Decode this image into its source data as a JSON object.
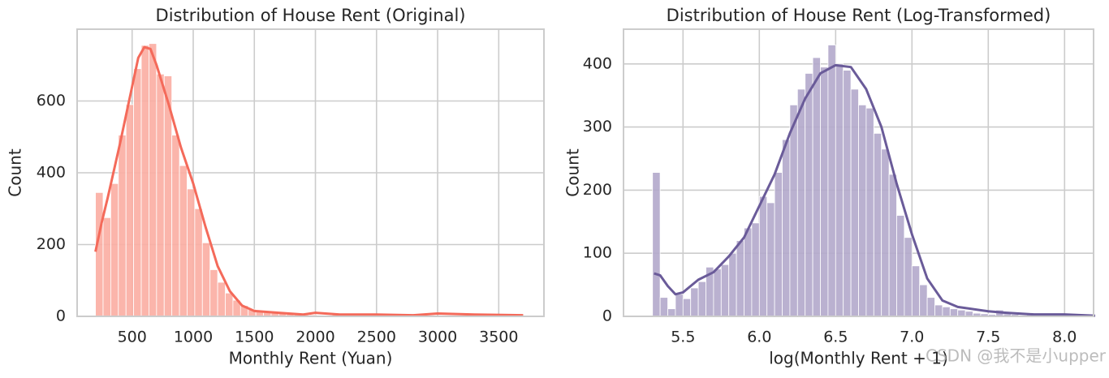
{
  "chart_data": [
    {
      "type": "histogram",
      "title": "Distribution of House Rent (Original)",
      "xlabel": "Monthly Rent (Yuan)",
      "ylabel": "Count",
      "xlim": [
        50,
        3870
      ],
      "ylim": [
        0,
        800
      ],
      "xticks": [
        500,
        1000,
        1500,
        2000,
        2500,
        3000,
        3500
      ],
      "yticks": [
        0,
        200,
        400,
        600
      ],
      "grid": true,
      "color": "#fbada2",
      "bins": [
        200,
        262.5,
        325,
        387.5,
        450,
        512.5,
        575,
        637.5,
        700,
        762.5,
        825,
        887.5,
        950,
        1012.5,
        1075,
        1137.5,
        1200,
        1262.5,
        1325,
        1387.5,
        1450,
        1512.5,
        1575,
        1637.5,
        1700,
        1762.5,
        1825,
        1887.5,
        1950,
        2012.5,
        2075,
        2137.5,
        2200,
        2262.5,
        2325,
        2387.5,
        2450,
        2512.5,
        2575,
        2637.5,
        2700,
        2762.5,
        2825,
        2887.5,
        2950,
        3012.5,
        3075,
        3137.5,
        3200,
        3262.5,
        3325,
        3387.5,
        3450,
        3512.5,
        3575,
        3637.5,
        3700
      ],
      "values": [
        345,
        275,
        370,
        505,
        590,
        690,
        755,
        760,
        675,
        670,
        505,
        420,
        355,
        300,
        205,
        130,
        95,
        65,
        45,
        30,
        20,
        14,
        12,
        10,
        8,
        6,
        5,
        4,
        4,
        3,
        3,
        6,
        5,
        3,
        2,
        2,
        3,
        2,
        2,
        1,
        1,
        2,
        1,
        1,
        1,
        1,
        2,
        1,
        1,
        1,
        1,
        1,
        1,
        1,
        1,
        1
      ],
      "line": {
        "color": "#f46a5a",
        "x": [
          200,
          250,
          300,
          400,
          500,
          550,
          600,
          650,
          700,
          800,
          900,
          1000,
          1100,
          1200,
          1300,
          1400,
          1500,
          1700,
          1900,
          2000,
          2200,
          2500,
          2800,
          3000,
          3300,
          3700
        ],
        "values": [
          180,
          260,
          330,
          480,
          640,
          720,
          750,
          745,
          700,
          590,
          470,
          370,
          250,
          140,
          70,
          30,
          15,
          10,
          5,
          10,
          5,
          5,
          3,
          8,
          5,
          3
        ]
      }
    },
    {
      "type": "histogram",
      "title": "Distribution of House Rent (Log-Transformed)",
      "xlabel": "log(Monthly Rent + 1)",
      "ylabel": "Count",
      "xlim": [
        5.11,
        8.19
      ],
      "ylim": [
        0,
        455
      ],
      "xticks": [
        5.5,
        {
          "value": 6,
          "label": "6.0"
        },
        6.5,
        {
          "value": 7,
          "label": "7.0"
        },
        7.5,
        {
          "value": 8,
          "label": "8.0"
        }
      ],
      "yticks": [
        0,
        100,
        200,
        300,
        400
      ],
      "grid": true,
      "color": "#b3a8cb",
      "bins": [
        5.3,
        5.35,
        5.4,
        5.45,
        5.5,
        5.55,
        5.6,
        5.65,
        5.7,
        5.75,
        5.8,
        5.85,
        5.9,
        5.95,
        6,
        6.05,
        6.1,
        6.15,
        6.2,
        6.25,
        6.3,
        6.35,
        6.4,
        6.45,
        6.5,
        6.55,
        6.6,
        6.65,
        6.7,
        6.75,
        6.8,
        6.85,
        6.9,
        6.95,
        7,
        7.05,
        7.1,
        7.15,
        7.2,
        7.25,
        7.3,
        7.35,
        7.4,
        7.45,
        7.5,
        7.55,
        7.6,
        7.65,
        7.7,
        7.75,
        7.8,
        7.85,
        7.9,
        7.95,
        8,
        8.05,
        8.1,
        8.15,
        8.2
      ],
      "values": [
        228,
        30,
        12,
        35,
        28,
        45,
        55,
        78,
        75,
        82,
        100,
        120,
        140,
        148,
        190,
        180,
        228,
        280,
        335,
        360,
        385,
        410,
        395,
        430,
        400,
        390,
        360,
        335,
        330,
        290,
        265,
        225,
        160,
        125,
        80,
        50,
        30,
        18,
        15,
        12,
        10,
        8,
        5,
        4,
        3,
        10,
        4,
        3,
        2,
        3,
        2,
        1,
        1,
        1,
        1,
        1,
        1,
        1
      ],
      "line": {
        "color": "#6a5b99",
        "x": [
          5.31,
          5.35,
          5.4,
          5.45,
          5.5,
          5.55,
          5.6,
          5.7,
          5.8,
          5.9,
          6.0,
          6.1,
          6.2,
          6.3,
          6.4,
          6.5,
          6.6,
          6.7,
          6.8,
          6.9,
          7.0,
          7.1,
          7.2,
          7.3,
          7.5,
          7.6,
          7.8,
          8.0,
          8.2
        ],
        "values": [
          68,
          65,
          48,
          35,
          38,
          48,
          58,
          70,
          95,
          125,
          175,
          225,
          290,
          345,
          385,
          398,
          395,
          360,
          300,
          210,
          130,
          60,
          25,
          15,
          8,
          6,
          3,
          3,
          1
        ]
      }
    }
  ],
  "watermark": "CSDN @我不是小upper"
}
